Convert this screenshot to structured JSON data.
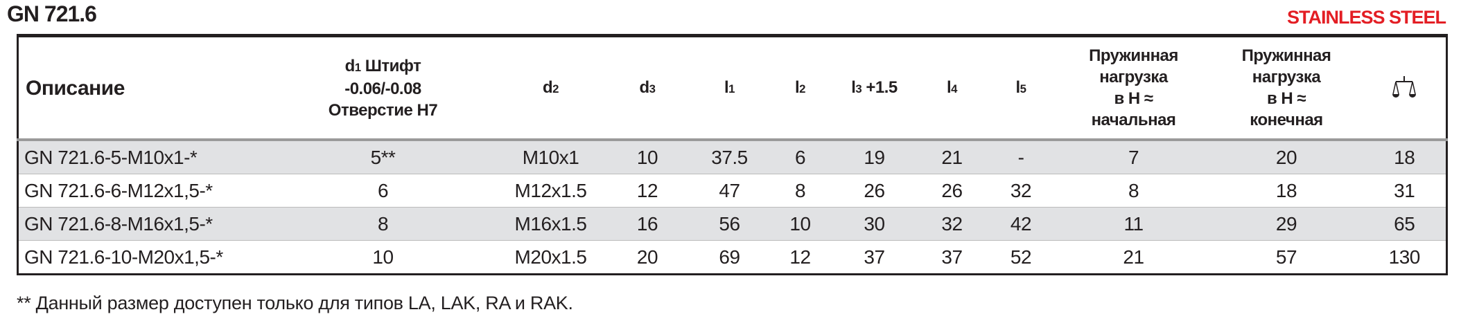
{
  "header": {
    "title": "GN 721.6",
    "material": "STAINLESS STEEL"
  },
  "colors": {
    "material": "#e31e24",
    "row_alt": "#e1e2e4"
  },
  "table": {
    "columns": [
      "Описание",
      "d1 Штифт",
      "-0.06/-0.08",
      "Отверстие H7",
      "d2",
      "d3",
      "l1",
      "l2",
      "l3 +1.5",
      "l4",
      "l5",
      "Пружинная нагрузка в Н ≈ начальная",
      "Пружинная нагрузка в Н ≈ конечная",
      "weight-scale-icon"
    ],
    "col": {
      "desc": "Описание",
      "d1a": "d",
      "d1b": "1",
      "d1c": " Штифт",
      "d1tol": "-0.06/-0.08",
      "d1hole": "Отверстие H7",
      "d2a": "d",
      "d2b": "2",
      "d3a": "d",
      "d3b": "3",
      "l1a": "l",
      "l1b": "1",
      "l2a": "l",
      "l2b": "2",
      "l3a": "l",
      "l3b": "3",
      "l3c": " +1.5",
      "l4a": "l",
      "l4b": "4",
      "l5a": "l",
      "l5b": "5",
      "s1": "Пружинная",
      "s2": "нагрузка",
      "s3": "в Н ≈",
      "s4": "начальная",
      "e4": "конечная"
    },
    "rows": [
      [
        "GN 721.6-5-M10x1-*",
        "5**",
        "M10x1",
        "10",
        "37.5",
        "6",
        "19",
        "21",
        "-",
        "7",
        "20",
        "18"
      ],
      [
        "GN 721.6-6-M12x1,5-*",
        "6",
        "M12x1.5",
        "12",
        "47",
        "8",
        "26",
        "26",
        "32",
        "8",
        "18",
        "31"
      ],
      [
        "GN 721.6-8-M16x1,5-*",
        "8",
        "M16x1.5",
        "16",
        "56",
        "10",
        "30",
        "32",
        "42",
        "11",
        "29",
        "65"
      ],
      [
        "GN 721.6-10-M20x1,5-*",
        "10",
        "M20x1.5",
        "20",
        "69",
        "12",
        "37",
        "37",
        "52",
        "21",
        "57",
        "130"
      ]
    ]
  },
  "footnote": "** Данный размер доступен только для типов LA, LAK, RA и RAK."
}
